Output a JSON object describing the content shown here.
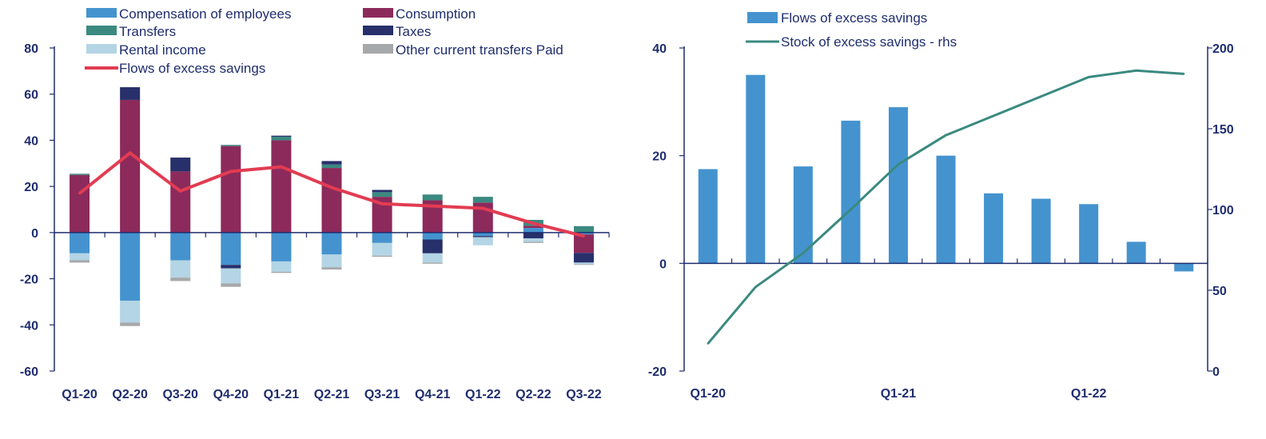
{
  "colors": {
    "compensation": "#4493cf",
    "consumption": "#8c2a5b",
    "transfers": "#3a8a80",
    "taxes": "#27306a",
    "rental": "#b3d5e5",
    "other": "#a7a8aa",
    "flows_line": "#e23c52",
    "flows_bar": "#4493cf",
    "stock_line": "#3a8a80",
    "axis": "#1f2d6e",
    "neg_tick": "#e0392b"
  },
  "chart_data": [
    {
      "type": "bar",
      "stacked": true,
      "categories": [
        "Q1-20",
        "Q2-20",
        "Q3-20",
        "Q4-20",
        "Q1-21",
        "Q2-21",
        "Q3-21",
        "Q4-21",
        "Q1-22",
        "Q2-22",
        "Q3-22"
      ],
      "ylim": [
        -60,
        80
      ],
      "yticks": [
        "80",
        "60",
        "40",
        "20",
        "0",
        "-20",
        "-40",
        "-60"
      ],
      "grid": false,
      "legend_position": "top",
      "series": [
        {
          "name": "Compensation of employees",
          "key": "compensation",
          "kind": "bar",
          "values": [
            -9,
            -29.5,
            -12,
            -14,
            -12.5,
            -9.5,
            -4.5,
            -3,
            -1.5,
            2,
            -0.8
          ]
        },
        {
          "name": "Consumption",
          "key": "consumption",
          "kind": "bar",
          "values": [
            25,
            57.5,
            26.5,
            37.5,
            40,
            28,
            15.5,
            14,
            13,
            1,
            -8
          ]
        },
        {
          "name": "Transfers",
          "key": "transfers",
          "kind": "bar",
          "values": [
            0.5,
            0,
            0,
            0.5,
            1.5,
            1.5,
            2,
            2.5,
            2.5,
            2.5,
            2.8
          ]
        },
        {
          "name": "Taxes",
          "key": "taxes",
          "kind": "bar",
          "values": [
            0,
            5.5,
            6,
            -1.5,
            0.5,
            1.5,
            1,
            -6,
            -0.5,
            -2.5,
            -4.2
          ]
        },
        {
          "name": "Rental income",
          "key": "rental",
          "kind": "bar",
          "values": [
            -3,
            -9.5,
            -7.5,
            -6.5,
            -4.5,
            -5.5,
            -5.5,
            -4,
            -3.5,
            -1.5,
            -0.7
          ]
        },
        {
          "name": "Other current transfers Paid",
          "key": "other",
          "kind": "bar",
          "values": [
            -1,
            -1.5,
            -1.5,
            -1.5,
            -0.5,
            -1,
            -0.5,
            -0.5,
            0,
            -0.5,
            -0.3
          ]
        },
        {
          "name": "Flows of excess savings",
          "key": "flows_line",
          "kind": "line",
          "values": [
            17,
            34.5,
            18,
            26.5,
            28.5,
            19.5,
            12.5,
            11.5,
            10.5,
            4,
            -1.5
          ]
        }
      ]
    },
    {
      "type": "bar",
      "x": [
        "Q1-20",
        "Q2-20",
        "Q3-20",
        "Q4-20",
        "Q1-21",
        "Q2-21",
        "Q3-21",
        "Q4-21",
        "Q1-22",
        "Q2-22",
        "Q3-22"
      ],
      "xtick_labels": [
        "Q1-20",
        "Q1-21",
        "Q1-22"
      ],
      "ylim": [
        -20,
        40
      ],
      "yticks": [
        "40",
        "20",
        "0",
        "-20"
      ],
      "y2lim": [
        0,
        200
      ],
      "y2ticks": [
        "200",
        "150",
        "100",
        "50",
        "0"
      ],
      "grid": false,
      "legend_position": "top",
      "series": [
        {
          "name": "Flows of excess savings",
          "key": "flows_bar",
          "kind": "bar",
          "axis": "left",
          "values": [
            17.5,
            35,
            18,
            26.5,
            29,
            20,
            13,
            12,
            11,
            4,
            -1.5
          ]
        },
        {
          "name": "Stock of excess savings - rhs",
          "key": "stock_line",
          "kind": "line",
          "axis": "right",
          "values": [
            17,
            52,
            73,
            100,
            128,
            146,
            158,
            170,
            182,
            186,
            184
          ]
        }
      ]
    }
  ]
}
